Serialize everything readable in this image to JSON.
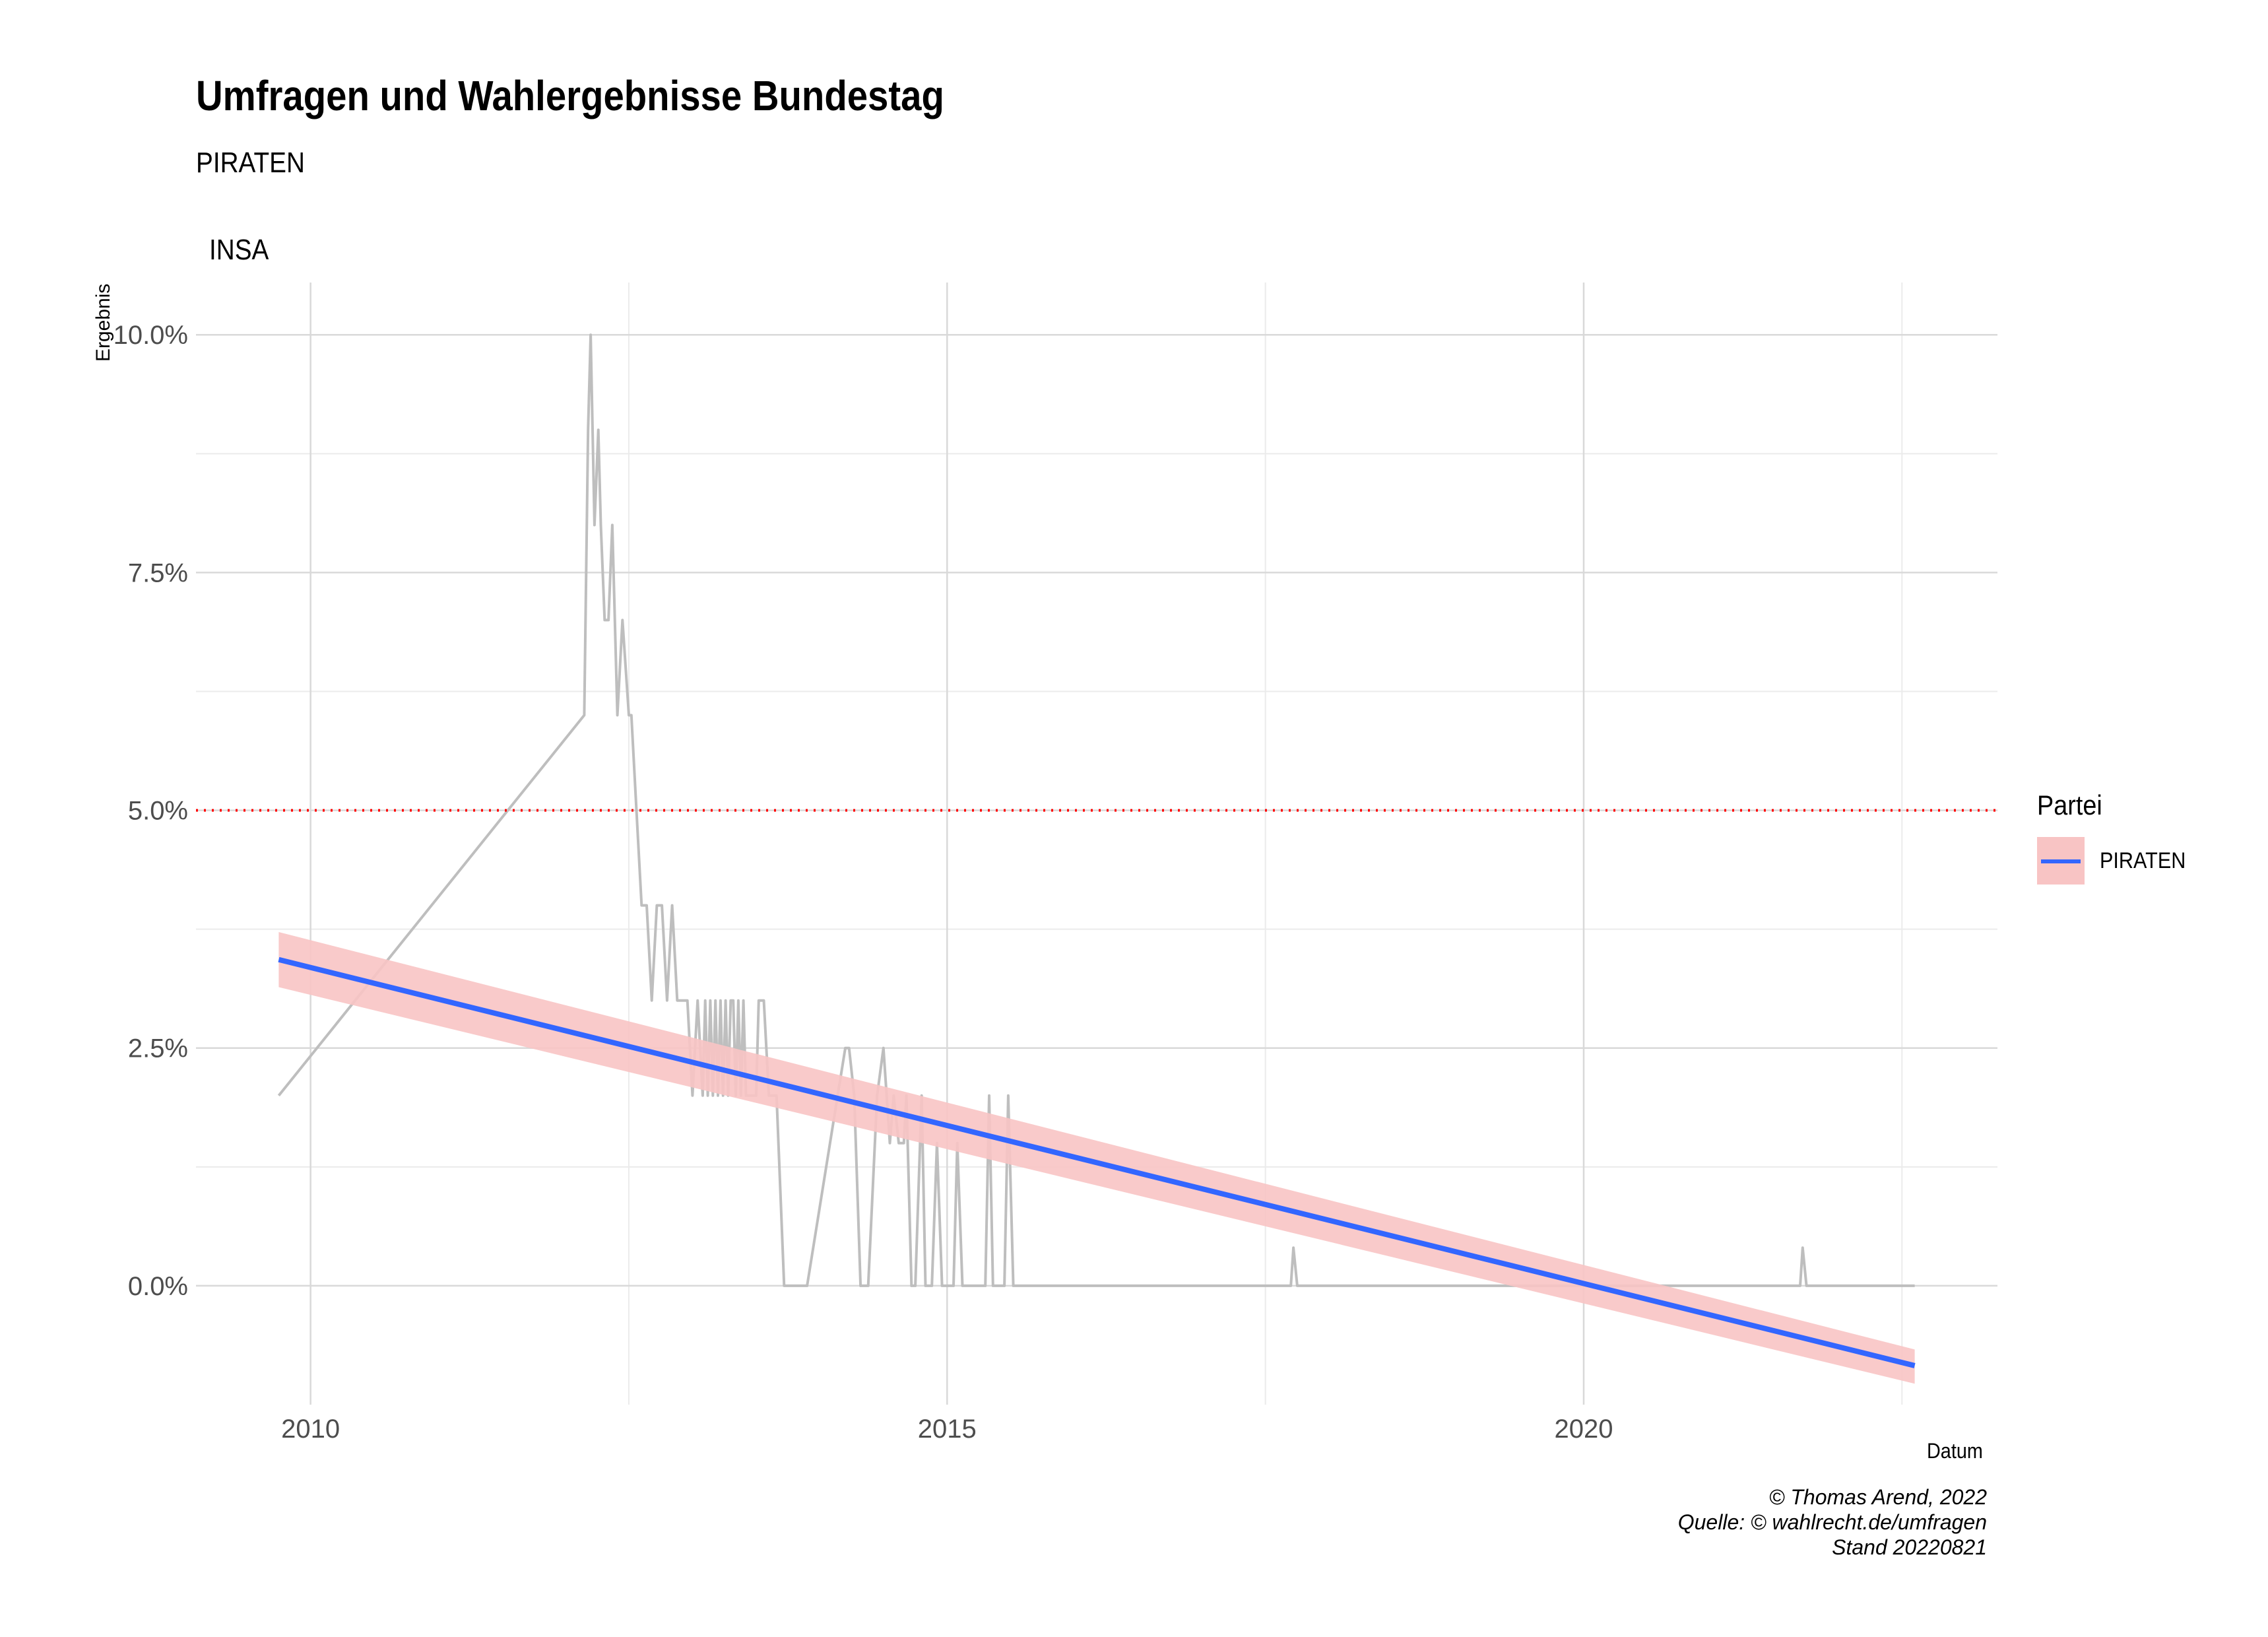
{
  "header": {
    "title": "Umfragen und Wahlergebnisse Bundestag",
    "subtitle": "PIRATEN",
    "facet": "INSA"
  },
  "caption": {
    "line1": "© Thomas Arend, 2022",
    "line2": "Quelle: © wahlrecht.de/umfragen",
    "line3": "Stand 20220821"
  },
  "legend": {
    "title": "Partei",
    "label": "PIRATEN"
  },
  "colors": {
    "poll_line": "#bebebe",
    "trend": "#3366ff",
    "ribbon": "#f8c4c4",
    "threshold": "#ff0000",
    "grid": "#d9d9d9"
  },
  "chart_data": {
    "type": "line",
    "xlabel": "Datum",
    "ylabel": "Ergebnis",
    "xlim": [
      2009.1,
      2023.25
    ],
    "ylim": [
      -1.25,
      10.55
    ],
    "x_ticks": [
      2010,
      2015,
      2020
    ],
    "x_tick_labels": [
      "2010",
      "2015",
      "2020"
    ],
    "y_ticks": [
      0,
      2.5,
      5,
      7.5,
      10
    ],
    "y_tick_labels": [
      "0.0%",
      "2.5%",
      "5.0%",
      "7.5%",
      "10.0%"
    ],
    "threshold": 5,
    "series": [
      {
        "name": "PIRATEN",
        "x": [
          2009.75,
          2012.15,
          2012.18,
          2012.2,
          2012.23,
          2012.26,
          2012.28,
          2012.31,
          2012.34,
          2012.37,
          2012.41,
          2012.45,
          2012.5,
          2012.52,
          2012.56,
          2012.6,
          2012.64,
          2012.68,
          2012.72,
          2012.76,
          2012.8,
          2012.84,
          2012.88,
          2012.92,
          2012.96,
          2013.0,
          2013.04,
          2013.08,
          2013.1,
          2013.12,
          2013.14,
          2013.16,
          2013.18,
          2013.2,
          2013.22,
          2013.24,
          2013.26,
          2013.28,
          2013.3,
          2013.32,
          2013.34,
          2013.36,
          2013.38,
          2013.4,
          2013.42,
          2013.44,
          2013.46,
          2013.48,
          2013.5,
          2013.52,
          2013.56,
          2013.6,
          2013.66,
          2013.72,
          2013.75,
          2013.9,
          2014.2,
          2014.23,
          2014.27,
          2014.32,
          2014.38,
          2014.45,
          2014.5,
          2014.55,
          2014.58,
          2014.62,
          2014.66,
          2014.68,
          2014.72,
          2014.75,
          2014.8,
          2014.83,
          2014.88,
          2014.92,
          2014.96,
          2015.05,
          2015.08,
          2015.12,
          2015.3,
          2015.33,
          2015.36,
          2015.45,
          2015.48,
          2015.52,
          2015.56,
          2017.7,
          2017.72,
          2017.75,
          2021.7,
          2021.72,
          2021.75,
          2022.6
        ],
        "y": [
          2,
          6,
          9,
          10,
          8,
          9,
          8,
          7,
          7,
          8,
          6,
          7,
          6,
          6,
          5,
          4,
          4,
          3,
          4,
          4,
          3,
          4,
          3,
          3,
          3,
          2,
          3,
          2,
          3,
          2,
          3,
          2,
          3,
          2,
          3,
          2,
          3,
          2,
          3,
          3,
          2,
          3,
          2,
          3,
          2,
          2,
          2,
          2,
          2,
          3,
          3,
          2,
          2,
          0,
          0,
          0,
          2.5,
          2.5,
          2,
          0,
          0,
          2,
          2.5,
          1.5,
          2,
          1.5,
          1.5,
          2,
          0,
          0,
          2,
          0,
          0,
          1.5,
          0,
          0,
          1.5,
          0,
          0,
          2,
          0,
          0,
          2,
          0,
          0,
          0,
          0.4,
          0,
          0,
          0.4,
          0,
          0
        ]
      }
    ],
    "trend": {
      "x": [
        2009.75,
        2022.6
      ],
      "y": [
        3.43,
        -0.84
      ],
      "ribbon_upper": [
        3.72,
        -0.67
      ],
      "ribbon_lower": [
        3.14,
        -1.03
      ]
    }
  }
}
